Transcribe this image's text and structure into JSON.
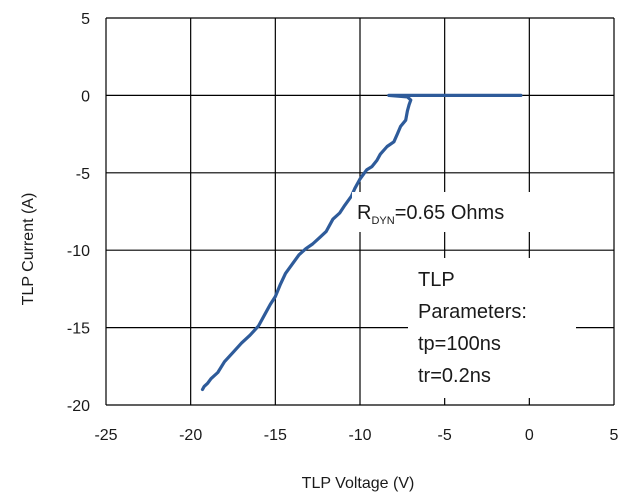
{
  "chart_data": {
    "type": "line",
    "xlabel": "TLP Voltage (V)",
    "ylabel": "TLP Current (A)",
    "xlim": [
      -25,
      5
    ],
    "ylim": [
      -20,
      5
    ],
    "xticks": [
      -25,
      -20,
      -15,
      -10,
      -5,
      0,
      5
    ],
    "yticks": [
      5,
      0,
      -5,
      -10,
      -15,
      -20
    ],
    "xtick_labels": [
      "-25",
      "-20",
      "-15",
      "-10",
      "-5",
      "0",
      "5"
    ],
    "ytick_labels": [
      "5",
      "0",
      "-5",
      "-10",
      "-15",
      "-20"
    ],
    "grid": true,
    "line_color": "#2e5b9a",
    "series": [
      {
        "x": [
          -0.5,
          -2.0,
          -4.0,
          -6.0,
          -7.0,
          -7.4,
          -7.6,
          -8.3,
          -7.2,
          -7.0,
          -7.1,
          -7.2,
          -7.3,
          -7.6,
          -7.8,
          -8.0,
          -8.4,
          -8.8,
          -9.0,
          -9.3,
          -9.6,
          -10.0,
          -10.3,
          -10.5,
          -10.9,
          -11.2,
          -11.6,
          -12.0,
          -12.4,
          -12.8,
          -13.2,
          -13.6,
          -14.0,
          -14.4,
          -14.7,
          -15.0,
          -15.3,
          -15.6,
          -16.0,
          -16.5,
          -17.0,
          -17.5,
          -18.0,
          -18.4,
          -18.8,
          -19.0,
          -19.2,
          -19.3
        ],
        "y": [
          0,
          0,
          0,
          0,
          0,
          0,
          0,
          0,
          -0.1,
          -0.3,
          -0.6,
          -1.0,
          -1.6,
          -2.0,
          -2.5,
          -3.0,
          -3.3,
          -3.8,
          -4.2,
          -4.6,
          -4.8,
          -5.4,
          -6.0,
          -6.5,
          -7.1,
          -7.6,
          -8.0,
          -8.8,
          -9.2,
          -9.6,
          -9.9,
          -10.3,
          -10.9,
          -11.5,
          -12.2,
          -13.0,
          -13.5,
          -14.1,
          -14.9,
          -15.5,
          -16.0,
          -16.6,
          -17.2,
          -17.9,
          -18.3,
          -18.6,
          -18.8,
          -19.0
        ]
      }
    ],
    "annotations": {
      "rdyn_prefix": "R",
      "rdyn_sub": "DYN",
      "rdyn_value": "=0.65 Ohms",
      "params": [
        "TLP",
        "Parameters:",
        "tp=100ns",
        "tr=0.2ns"
      ]
    }
  }
}
